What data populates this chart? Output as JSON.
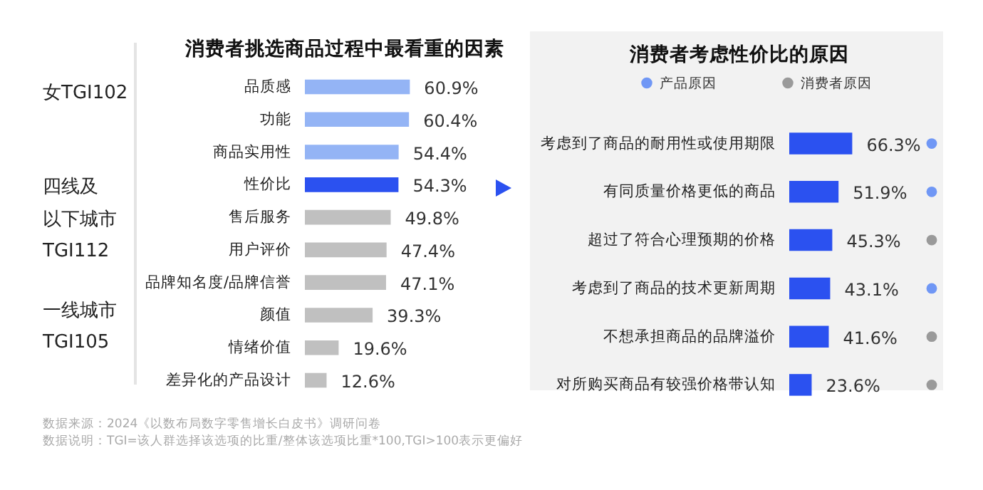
{
  "chart_data": [
    {
      "type": "bar",
      "orientation": "horizontal",
      "title": "消费者挑选商品过程中最看重的因素",
      "categories": [
        "品质感",
        "功能",
        "商品实用性",
        "性价比",
        "售后服务",
        "用户评价",
        "品牌知名度/品牌信誉",
        "颜值",
        "情绪价值",
        "差异化的产品设计"
      ],
      "values": [
        60.9,
        60.4,
        54.4,
        54.3,
        49.8,
        47.4,
        47.1,
        39.3,
        19.6,
        12.6
      ],
      "value_labels": [
        "60.9%",
        "60.4%",
        "54.4%",
        "54.3%",
        "49.8%",
        "47.4%",
        "47.1%",
        "39.3%",
        "19.6%",
        "12.6%"
      ],
      "colors": [
        "#94b4f5",
        "#94b4f5",
        "#94b4f5",
        "#2b51f0",
        "#c0c0c0",
        "#c0c0c0",
        "#c0c0c0",
        "#c0c0c0",
        "#c0c0c0",
        "#c0c0c0"
      ],
      "annotations": [
        "女TGI102",
        "四线及",
        "以下城市",
        "TGI112",
        "一线城市",
        "TGI105",
        "数据来源：2024《以数布局数字零售增长白皮书》调研问卷",
        "数据说明：TGI=该人群选择该选项的比重/整体该选项比重*100,TGI>100表示更偏好"
      ]
    },
    {
      "type": "bar",
      "orientation": "horizontal",
      "title": "消费者考虑性价比的原因",
      "legend": "top",
      "categories": [
        "考虑到了商品的耐用性或使用期限",
        "有同质量价格更低的商品",
        "超过了符合心理预期的价格",
        "考虑到了商品的技术更新周期",
        "不想承担商品的品牌溢价",
        "对所购买商品有较强价格带认知"
      ],
      "series": [
        {
          "color": "#2b51f0",
          "values": [
            66.3,
            51.9,
            45.3,
            43.1,
            41.6,
            23.6
          ],
          "value_labels": [
            "66.3%",
            "51.9%",
            "45.3%",
            "43.1%",
            "41.6%",
            "23.6%"
          ]
        },
        {
          "type": "scatter",
          "name": "产品原因",
          "color": "#7097f5",
          "values": [
            150,
            150,
            null,
            150,
            null,
            null
          ]
        },
        {
          "type": "scatter",
          "name": "消费者原因",
          "color": "#9a9a9a",
          "values": [
            null,
            null,
            150,
            null,
            150,
            150
          ]
        }
      ]
    }
  ]
}
